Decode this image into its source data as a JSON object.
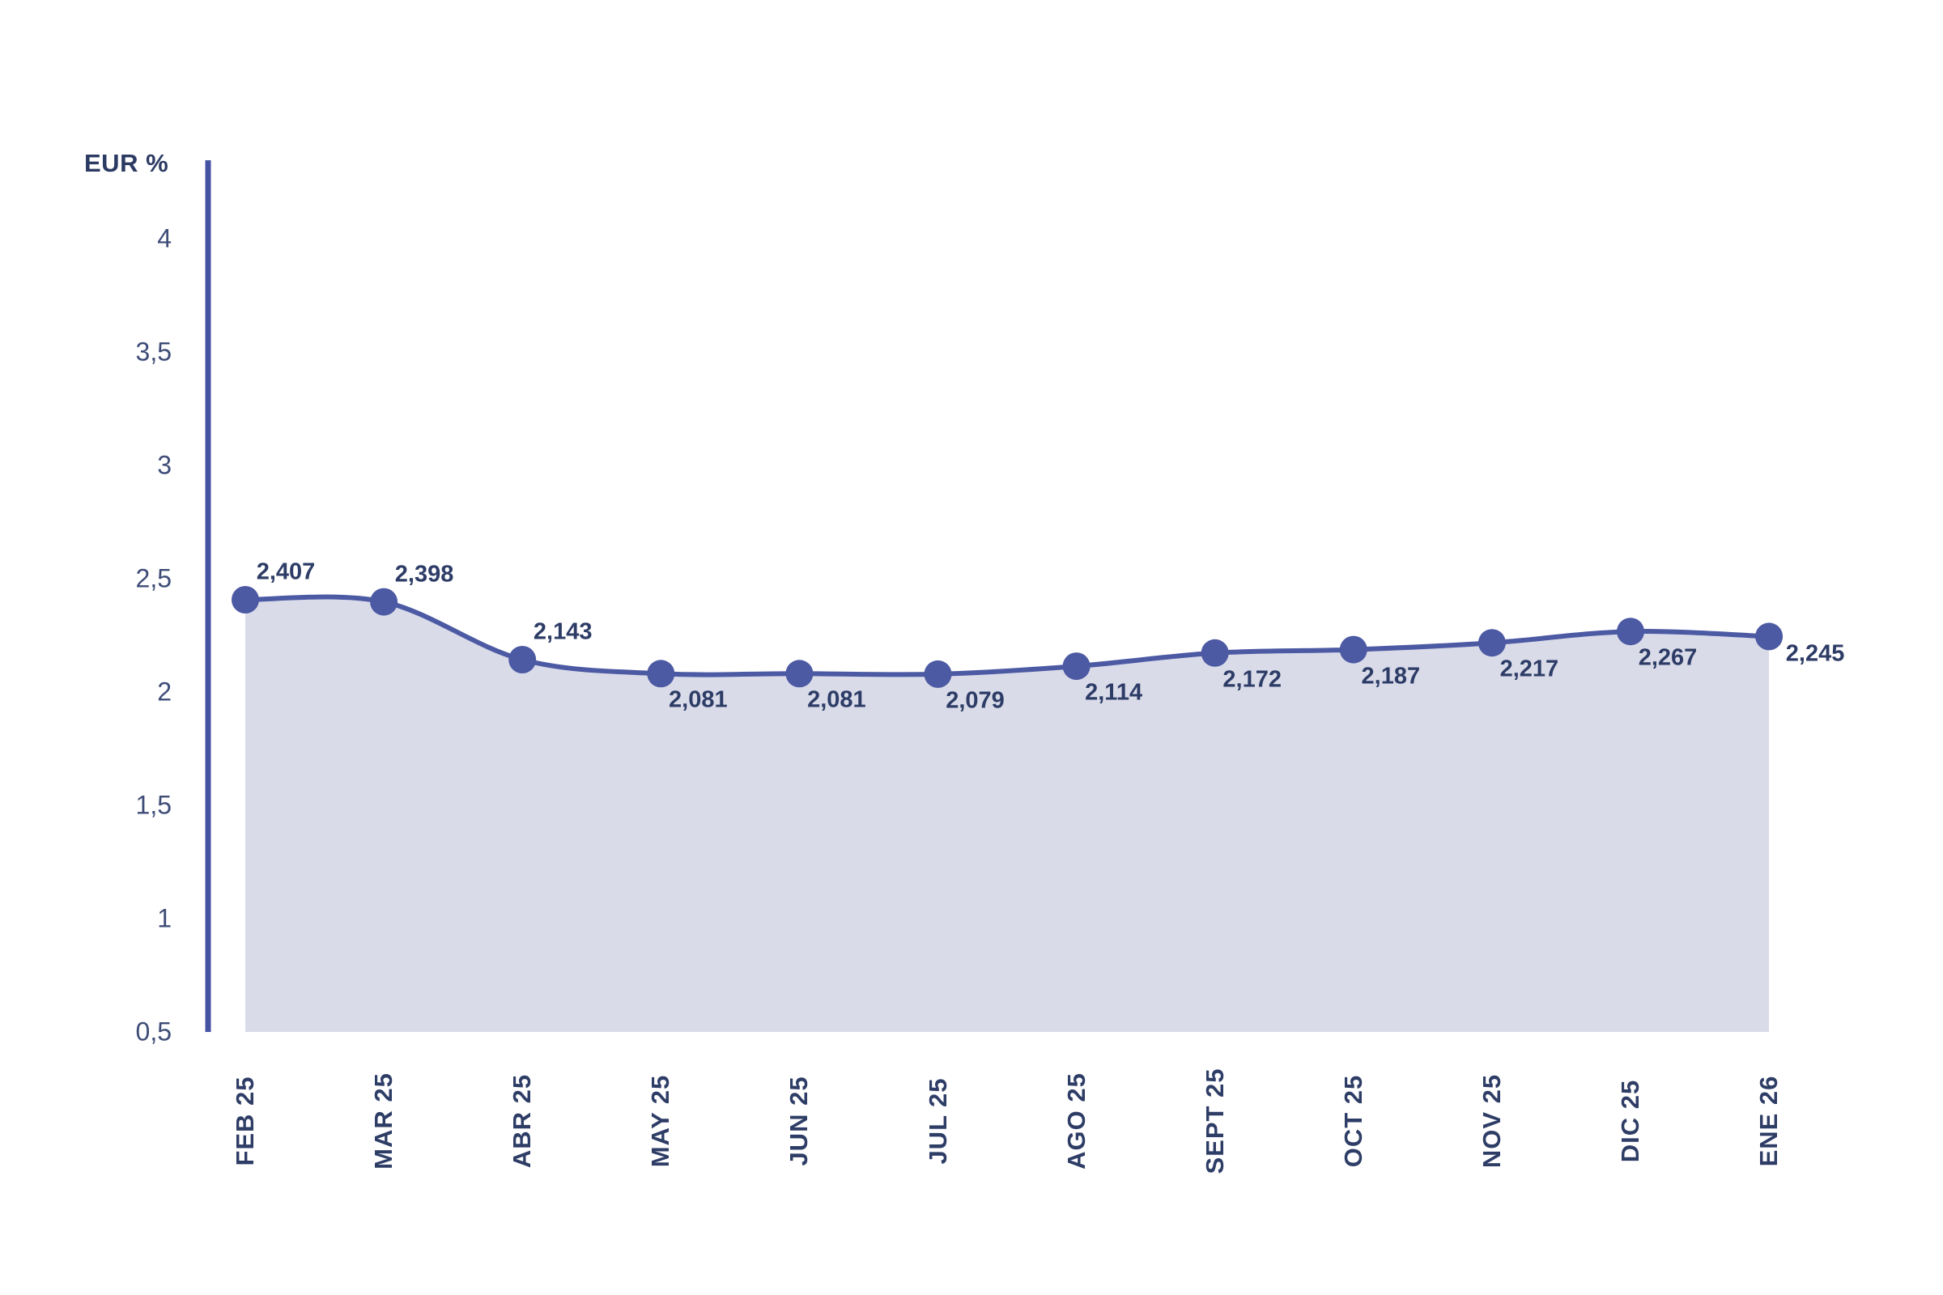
{
  "chart_data": {
    "type": "area",
    "title": "",
    "ylabel": "EUR %",
    "xlabel": "",
    "ylim": [
      0.5,
      4
    ],
    "grid": false,
    "legend": "none",
    "categories": [
      "FEB 25",
      "MAR 25",
      "ABR 25",
      "MAY 25",
      "JUN 25",
      "JUL 25",
      "AGO 25",
      "SEPT 25",
      "OCT 25",
      "NOV 25",
      "DIC 25",
      "ENE 26"
    ],
    "values": [
      2.407,
      2.398,
      2.143,
      2.081,
      2.081,
      2.079,
      2.114,
      2.172,
      2.187,
      2.217,
      2.267,
      2.245
    ],
    "value_labels": [
      "2,407",
      "2,398",
      "2,143",
      "2,081",
      "2,081",
      "2,079",
      "2,114",
      "2,172",
      "2,187",
      "2,217",
      "2,267",
      "2,245"
    ],
    "label_positions": [
      "above",
      "above",
      "above",
      "below",
      "below",
      "below",
      "below",
      "below",
      "below",
      "below",
      "below",
      "right"
    ],
    "yticks": [
      {
        "label": "4",
        "value": 4
      },
      {
        "label": "3,5",
        "value": 3.5
      },
      {
        "label": "3",
        "value": 3
      },
      {
        "label": "2,5",
        "value": 2.5
      },
      {
        "label": "2",
        "value": 2
      },
      {
        "label": "1,5",
        "value": 1.5
      },
      {
        "label": "1",
        "value": 1
      },
      {
        "label": "0,5",
        "value": 0.5
      }
    ],
    "colors": {
      "line": "#4C59A3",
      "dot": "#4C59A3",
      "area": "#D9DBE9",
      "axis": "#4553A2",
      "tick_text": "#3E4C77",
      "point_label_text": "#2D3C66",
      "x_label_text": "#2E3D66",
      "y_title_text": "#2B3A62",
      "background": "#FFFFFF"
    }
  }
}
